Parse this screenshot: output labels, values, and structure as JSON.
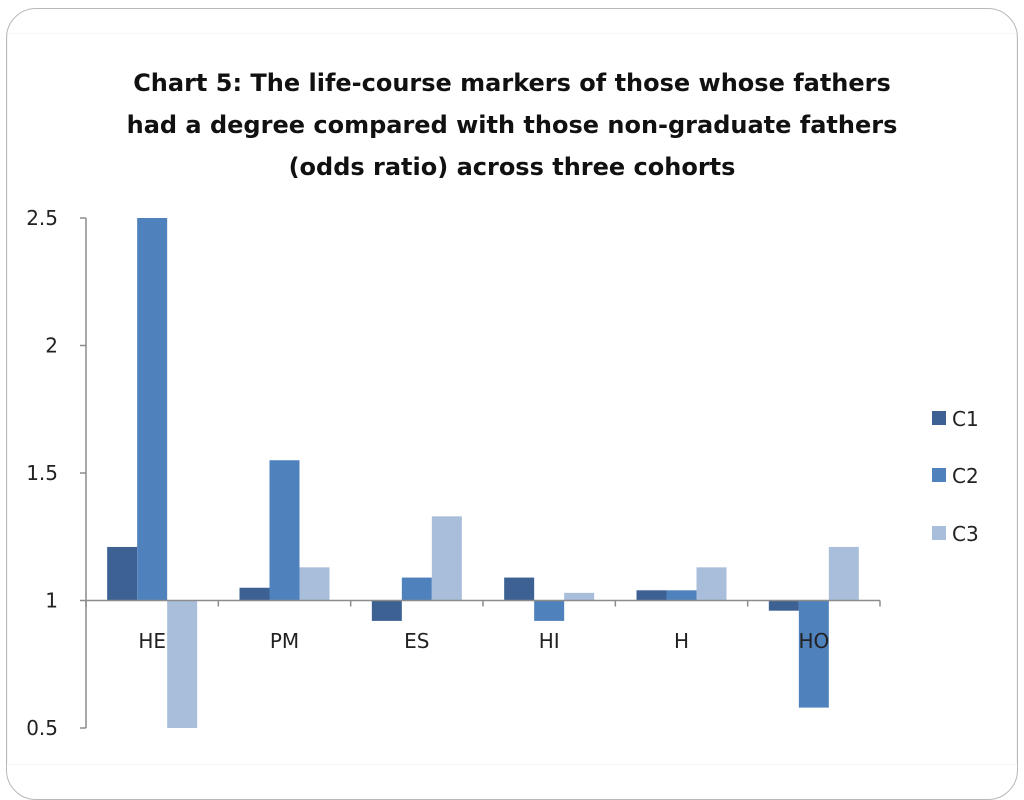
{
  "chart_data": {
    "type": "bar",
    "title_lines": [
      "Chart 5: The life-course markers of those whose fathers",
      "had a degree compared with those non-graduate fathers",
      "(odds ratio) across three cohorts"
    ],
    "categories": [
      "HE",
      "PM",
      "ES",
      "HI",
      "H",
      "HO"
    ],
    "series": [
      {
        "name": "C1",
        "color": "#3d6193",
        "values": [
          1.21,
          1.05,
          0.92,
          1.09,
          1.04,
          0.96
        ]
      },
      {
        "name": "C2",
        "color": "#4f81bd",
        "values": [
          2.5,
          1.55,
          1.09,
          0.92,
          1.04,
          0.58
        ]
      },
      {
        "name": "C3",
        "color": "#a9bedb",
        "values": [
          0.5,
          1.13,
          1.33,
          1.03,
          1.13,
          1.21
        ]
      }
    ],
    "baseline": 1,
    "ylim": [
      0.5,
      2.5
    ],
    "yticks": [
      "2.5",
      "2",
      "1.5",
      "1",
      "0.5"
    ],
    "ytick_values": [
      2.5,
      2,
      1.5,
      1,
      0.5
    ],
    "legend_position": "right",
    "grid": false
  }
}
